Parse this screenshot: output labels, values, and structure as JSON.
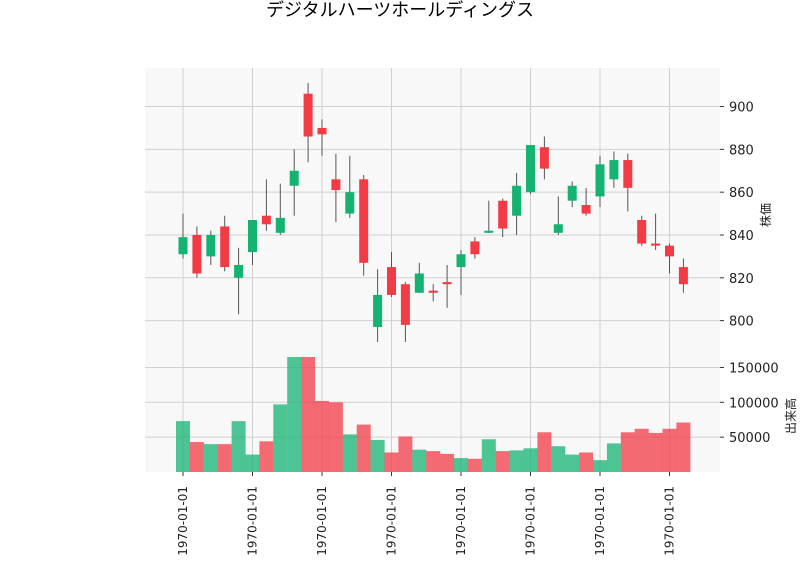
{
  "chart_data": {
    "type": "candlestick",
    "title": "デジタルハーツホールディングス",
    "price_ylabel": "株価",
    "volume_ylabel": "出来高",
    "up_color": "#14b371",
    "down_color": "#f23b45",
    "price_ylim": [
      783,
      918
    ],
    "price_yticks": [
      800,
      820,
      840,
      860,
      880,
      900
    ],
    "volume_ylim": [
      0,
      165000
    ],
    "volume_yticks": [
      50000,
      100000,
      150000
    ],
    "x_tick_labels": [
      "1970-01-01",
      "1970-01-01",
      "1970-01-01",
      "1970-01-01",
      "1970-01-01",
      "1970-01-01",
      "1970-01-01",
      "1970-01-01"
    ],
    "x_tick_positions": [
      0,
      5,
      10,
      15,
      20,
      25,
      30,
      35
    ],
    "candles": [
      {
        "o": 831,
        "h": 850,
        "l": 829,
        "c": 839,
        "v": 73000
      },
      {
        "o": 840,
        "h": 844,
        "l": 820,
        "c": 822,
        "v": 43000
      },
      {
        "o": 830,
        "h": 842,
        "l": 826,
        "c": 840,
        "v": 40000
      },
      {
        "o": 844,
        "h": 849,
        "l": 823,
        "c": 825,
        "v": 40000
      },
      {
        "o": 820,
        "h": 834,
        "l": 803,
        "c": 826,
        "v": 73000
      },
      {
        "o": 832,
        "h": 847,
        "l": 826,
        "c": 847,
        "v": 25000
      },
      {
        "o": 849,
        "h": 866,
        "l": 842,
        "c": 845,
        "v": 44000
      },
      {
        "o": 841,
        "h": 864,
        "l": 840,
        "c": 848,
        "v": 97000
      },
      {
        "o": 863,
        "h": 880,
        "l": 849,
        "c": 870,
        "v": 168000
      },
      {
        "o": 906,
        "h": 911,
        "l": 874,
        "c": 886,
        "v": 165000
      },
      {
        "o": 890,
        "h": 894,
        "l": 877,
        "c": 887,
        "v": 102000
      },
      {
        "o": 866,
        "h": 878,
        "l": 846,
        "c": 861,
        "v": 100000
      },
      {
        "o": 850,
        "h": 877,
        "l": 848,
        "c": 860,
        "v": 54000
      },
      {
        "o": 866,
        "h": 868,
        "l": 821,
        "c": 827,
        "v": 68000
      },
      {
        "o": 797,
        "h": 824,
        "l": 790,
        "c": 812,
        "v": 46000
      },
      {
        "o": 825,
        "h": 832,
        "l": 811,
        "c": 812,
        "v": 28000
      },
      {
        "o": 817,
        "h": 818,
        "l": 790,
        "c": 798,
        "v": 51000
      },
      {
        "o": 813,
        "h": 827,
        "l": 813,
        "c": 822,
        "v": 32000
      },
      {
        "o": 814,
        "h": 817,
        "l": 809,
        "c": 813,
        "v": 30000
      },
      {
        "o": 818,
        "h": 826,
        "l": 806,
        "c": 817,
        "v": 26000
      },
      {
        "o": 825,
        "h": 833,
        "l": 812,
        "c": 831,
        "v": 20000
      },
      {
        "o": 837,
        "h": 839,
        "l": 829,
        "c": 831,
        "v": 19000
      },
      {
        "o": 841,
        "h": 856,
        "l": 841,
        "c": 842,
        "v": 47000
      },
      {
        "o": 856,
        "h": 857,
        "l": 839,
        "c": 843,
        "v": 30000
      },
      {
        "o": 849,
        "h": 869,
        "l": 840,
        "c": 863,
        "v": 31000
      },
      {
        "o": 860,
        "h": 882,
        "l": 859,
        "c": 882,
        "v": 34000
      },
      {
        "o": 881,
        "h": 886,
        "l": 866,
        "c": 871,
        "v": 57000
      },
      {
        "o": 841,
        "h": 858,
        "l": 840,
        "c": 845,
        "v": 37000
      },
      {
        "o": 856,
        "h": 865,
        "l": 853,
        "c": 863,
        "v": 25000
      },
      {
        "o": 854,
        "h": 862,
        "l": 849,
        "c": 850,
        "v": 28000
      },
      {
        "o": 858,
        "h": 877,
        "l": 853,
        "c": 873,
        "v": 17000
      },
      {
        "o": 866,
        "h": 879,
        "l": 862,
        "c": 875,
        "v": 41000
      },
      {
        "o": 875,
        "h": 878,
        "l": 851,
        "c": 862,
        "v": 57000
      },
      {
        "o": 847,
        "h": 849,
        "l": 835,
        "c": 836,
        "v": 62000
      },
      {
        "o": 836,
        "h": 850,
        "l": 833,
        "c": 835,
        "v": 56000
      },
      {
        "o": 835,
        "h": 836,
        "l": 822,
        "c": 830,
        "v": 62000
      },
      {
        "o": 825,
        "h": 829,
        "l": 813,
        "c": 817,
        "v": 71000
      }
    ]
  }
}
